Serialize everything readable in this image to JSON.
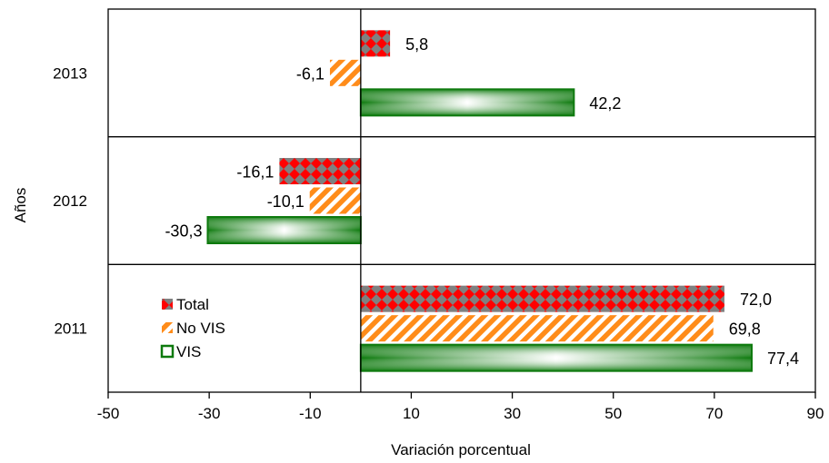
{
  "chart_data": {
    "type": "bar",
    "orientation": "horizontal",
    "xlabel": "Variación porcentual",
    "ylabel": "Años",
    "xlim": [
      -50,
      90
    ],
    "xticks": [
      -50,
      -30,
      -10,
      10,
      30,
      50,
      70,
      90
    ],
    "categories": [
      "2013",
      "2012",
      "2011"
    ],
    "series": [
      {
        "name": "Total",
        "values": [
          5.8,
          -16.1,
          72.0
        ],
        "labels": [
          "5,8",
          "-16,1",
          "72,0"
        ],
        "pattern": "checker",
        "colors": [
          "#ff0000",
          "#808080"
        ]
      },
      {
        "name": "No VIS",
        "values": [
          -6.1,
          -10.1,
          69.8
        ],
        "labels": [
          "-6,1",
          "-10,1",
          "69,8"
        ],
        "pattern": "diagonal-stripes",
        "colors": [
          "#ff8c1a",
          "#ffffff"
        ]
      },
      {
        "name": "VIS",
        "values": [
          42.2,
          -30.3,
          77.4
        ],
        "labels": [
          "42,2",
          "-30,3",
          "77,4"
        ],
        "pattern": "gradient",
        "colors": [
          "#0e7a0e",
          "#ffffff"
        ]
      }
    ],
    "legend_position": "inside-bottom-left",
    "grid": false
  }
}
